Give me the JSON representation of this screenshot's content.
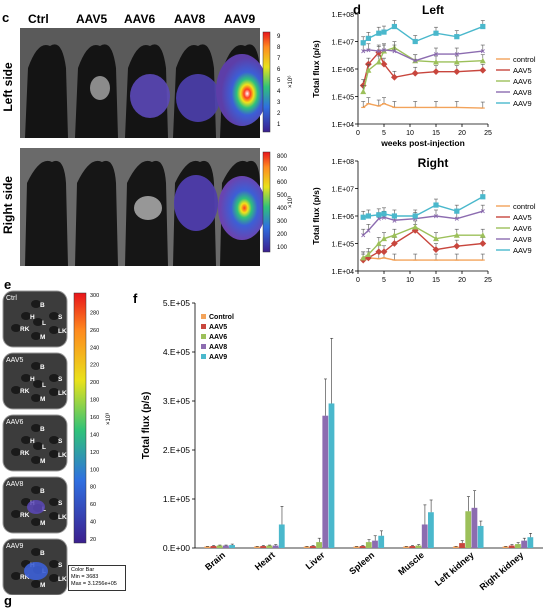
{
  "panel_c": {
    "label": "c",
    "columns": [
      "Ctrl",
      "AAV5",
      "AAV6",
      "AAV8",
      "AAV9"
    ],
    "rows": [
      {
        "label": "Left side",
        "scale_ticks": [
          "9",
          "8",
          "7",
          "6",
          "5",
          "4",
          "3",
          "2",
          "1"
        ],
        "unit": "×10⁶"
      },
      {
        "label": "Right side",
        "scale_ticks": [
          "800",
          "700",
          "600",
          "500",
          "400",
          "300",
          "200",
          "100"
        ],
        "unit": "×10³"
      }
    ]
  },
  "panel_e": {
    "label": "e",
    "dish_labels": [
      "Ctrl",
      "AAV5",
      "AAV6",
      "AAV8",
      "AAV9"
    ],
    "organ_letters": [
      "B",
      "H",
      "S",
      "L",
      "RK",
      "LK",
      "M"
    ],
    "scale_ticks": [
      "300",
      "280",
      "260",
      "240",
      "220",
      "200",
      "180",
      "160",
      "140",
      "120",
      "100",
      "80",
      "60",
      "40",
      "20"
    ],
    "unit": "×10³",
    "color_bar_box": [
      "Color Bar",
      "Min = 3683",
      "Max = 3.1256e+05"
    ]
  },
  "panel_g": {
    "label": "g"
  },
  "chart_data": [
    {
      "panel": "d",
      "type": "line",
      "title": "Left",
      "xlabel": "weeks post-injection",
      "ylabel": "Total flux (p/s)",
      "yscale": "log",
      "ylim": [
        10000,
        100000000
      ],
      "xlim": [
        0,
        25
      ],
      "xticks": [
        0,
        5,
        10,
        15,
        20,
        25
      ],
      "yticks": [
        "1.E+04",
        "1.E+05",
        "1.E+06",
        "1.E+07",
        "1.E+08"
      ],
      "x": [
        1,
        2,
        4,
        5,
        7,
        11,
        15,
        19,
        24
      ],
      "series": [
        {
          "name": "control",
          "color": "#f3a35a",
          "values": [
            40000,
            55000,
            45000,
            55000,
            40000,
            40000,
            40000,
            40000,
            38000
          ]
        },
        {
          "name": "AAV5",
          "color": "#c8463d",
          "values": [
            250000,
            1500000,
            4000000,
            1500000,
            500000,
            700000,
            800000,
            800000,
            900000
          ]
        },
        {
          "name": "AAV6",
          "color": "#9cc05a",
          "values": [
            150000,
            900000,
            1800000,
            4500000,
            6000000,
            2000000,
            1800000,
            1800000,
            2000000
          ]
        },
        {
          "name": "AAV8",
          "color": "#8c6cb0",
          "values": [
            4500000,
            5000000,
            4500000,
            5000000,
            4500000,
            2000000,
            3500000,
            3500000,
            4500000
          ]
        },
        {
          "name": "AAV9",
          "color": "#4ab8cc",
          "values": [
            9000000,
            13000000,
            20000000,
            22000000,
            35000000,
            10000000,
            20000000,
            15000000,
            35000000
          ]
        }
      ]
    },
    {
      "panel": "d",
      "type": "line",
      "title": "Right",
      "xlabel": "weeks post-injection",
      "ylabel": "Total flux (p/s)",
      "yscale": "log",
      "ylim": [
        10000,
        100000000
      ],
      "xlim": [
        0,
        25
      ],
      "xticks": [
        0,
        5,
        10,
        15,
        20,
        25
      ],
      "yticks": [
        "1.E+04",
        "1.E+05",
        "1.E+06",
        "1.E+07",
        "1.E+08"
      ],
      "x": [
        1,
        2,
        4,
        5,
        7,
        11,
        15,
        19,
        24
      ],
      "series": [
        {
          "name": "control",
          "color": "#f3a35a",
          "values": [
            30000,
            30000,
            28000,
            30000,
            25000,
            25000,
            25000,
            25000,
            25000
          ]
        },
        {
          "name": "AAV5",
          "color": "#c8463d",
          "values": [
            25000,
            30000,
            50000,
            50000,
            100000,
            300000,
            60000,
            80000,
            100000
          ]
        },
        {
          "name": "AAV6",
          "color": "#9cc05a",
          "values": [
            30000,
            40000,
            100000,
            150000,
            200000,
            400000,
            150000,
            200000,
            200000
          ]
        },
        {
          "name": "AAV8",
          "color": "#8c6cb0",
          "values": [
            200000,
            300000,
            800000,
            900000,
            700000,
            800000,
            1000000,
            800000,
            1500000
          ]
        },
        {
          "name": "AAV9",
          "color": "#4ab8cc",
          "values": [
            900000,
            1000000,
            1100000,
            1200000,
            1000000,
            1000000,
            2500000,
            1500000,
            5000000
          ]
        }
      ]
    },
    {
      "panel": "f",
      "type": "bar",
      "title": "",
      "xlabel": "",
      "ylabel": "Total flux (p/s)",
      "ylim": [
        0,
        500000
      ],
      "yticks": [
        "0.E+00",
        "1.E+05",
        "2.E+05",
        "3.E+05",
        "4.E+05",
        "5.E+05"
      ],
      "legend_position": "top-left",
      "categories": [
        "Brain",
        "Heart",
        "Liver",
        "Spleen",
        "Muscle",
        "Left kidney",
        "Right kidney"
      ],
      "series": [
        {
          "name": "Control",
          "color": "#f3a35a",
          "values": [
            3000,
            3000,
            3000,
            3000,
            3000,
            3000,
            3000
          ],
          "errors": [
            500,
            500,
            500,
            500,
            500,
            500,
            500
          ]
        },
        {
          "name": "AAV5",
          "color": "#c8463d",
          "values": [
            4000,
            4000,
            4000,
            4000,
            4000,
            10000,
            5000
          ],
          "errors": [
            1000,
            1000,
            1000,
            1000,
            1000,
            5000,
            2000
          ]
        },
        {
          "name": "AAV6",
          "color": "#9cc05a",
          "values": [
            5000,
            5000,
            12000,
            12000,
            5000,
            75000,
            8000
          ],
          "errors": [
            1000,
            1000,
            8000,
            5000,
            2000,
            30000,
            3000
          ]
        },
        {
          "name": "AAV8",
          "color": "#8c6cb0",
          "values": [
            5000,
            5000,
            270000,
            15000,
            48000,
            82000,
            15000
          ],
          "errors": [
            1000,
            2000,
            75000,
            10000,
            40000,
            35000,
            5000
          ]
        },
        {
          "name": "AAV9",
          "color": "#4ab8cc",
          "values": [
            6000,
            48000,
            295000,
            25000,
            73000,
            45000,
            22000
          ],
          "errors": [
            2000,
            37000,
            133000,
            10000,
            25000,
            10000,
            8000
          ]
        }
      ]
    }
  ]
}
